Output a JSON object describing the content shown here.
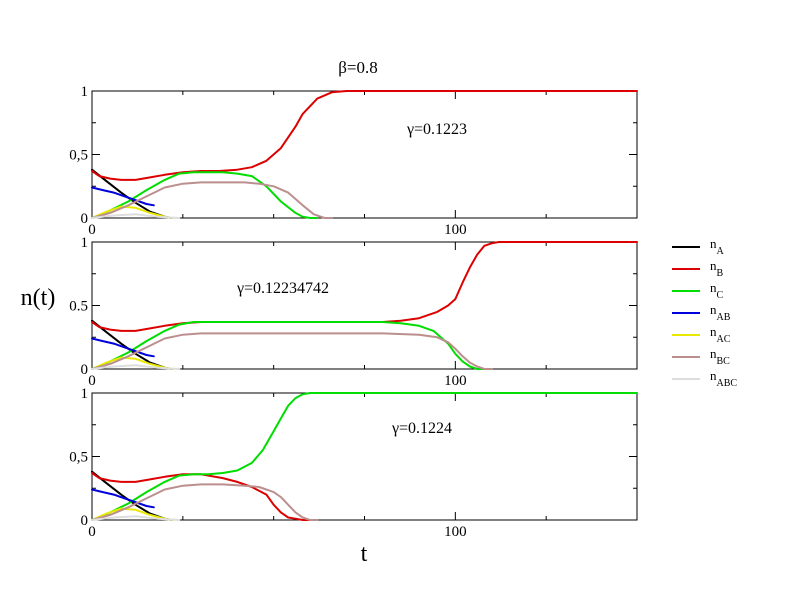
{
  "figure": {
    "title": "β=0.8",
    "ylabel": "n(t)",
    "xlabel": "t"
  },
  "chart_data": [
    {
      "type": "line",
      "panel": "top",
      "annotation": "γ=0.1223",
      "xlim": [
        0,
        150
      ],
      "ylim": [
        0,
        1
      ],
      "yticks": [
        {
          "v": 0,
          "label": "0"
        },
        {
          "v": 0.5,
          "label": "0,5"
        },
        {
          "v": 1,
          "label": "1"
        }
      ],
      "xticks": [
        {
          "v": 0,
          "label": "0"
        },
        {
          "v": 100,
          "label": "100"
        }
      ],
      "series": [
        {
          "key": "nA",
          "color": "#000000",
          "x": [
            0,
            4,
            8,
            12,
            16,
            20,
            22
          ],
          "y": [
            0.38,
            0.29,
            0.2,
            0.12,
            0.05,
            0.01,
            0
          ]
        },
        {
          "key": "nB",
          "color": "#dd0000",
          "x": [
            0,
            2,
            5,
            8,
            12,
            16,
            20,
            25,
            30,
            35,
            40,
            44,
            48,
            52,
            56,
            58,
            62,
            66,
            70,
            100,
            150
          ],
          "y": [
            0.37,
            0.33,
            0.31,
            0.3,
            0.3,
            0.32,
            0.34,
            0.36,
            0.37,
            0.37,
            0.38,
            0.4,
            0.45,
            0.55,
            0.72,
            0.82,
            0.94,
            0.99,
            1,
            1,
            1
          ]
        },
        {
          "key": "nC",
          "color": "#00dd00",
          "x": [
            0,
            5,
            10,
            15,
            20,
            24,
            28,
            32,
            36,
            40,
            44,
            48,
            52,
            56,
            58,
            60,
            62
          ],
          "y": [
            0,
            0.06,
            0.13,
            0.22,
            0.3,
            0.35,
            0.36,
            0.36,
            0.36,
            0.35,
            0.33,
            0.25,
            0.13,
            0.04,
            0.01,
            0,
            0
          ]
        },
        {
          "key": "nAB",
          "color": "#0000dd",
          "x": [
            0,
            3,
            6,
            9,
            12,
            15,
            17
          ],
          "y": [
            0.24,
            0.22,
            0.2,
            0.17,
            0.14,
            0.11,
            0.1
          ]
        },
        {
          "key": "nAC",
          "color": "#e8e800",
          "x": [
            0,
            4,
            8,
            12,
            16,
            20,
            22
          ],
          "y": [
            0,
            0.05,
            0.09,
            0.08,
            0.04,
            0.01,
            0
          ]
        },
        {
          "key": "nBC",
          "color": "#bc8f8f",
          "x": [
            0,
            5,
            10,
            15,
            20,
            25,
            30,
            36,
            42,
            46,
            50,
            54,
            58,
            61,
            64,
            66
          ],
          "y": [
            0,
            0.04,
            0.1,
            0.17,
            0.24,
            0.27,
            0.28,
            0.28,
            0.28,
            0.27,
            0.25,
            0.2,
            0.1,
            0.03,
            0,
            0
          ]
        },
        {
          "key": "nABC",
          "color": "#dddddd",
          "x": [
            0,
            6,
            12,
            18,
            24
          ],
          "y": [
            0,
            0.02,
            0.03,
            0.01,
            0
          ]
        }
      ]
    },
    {
      "type": "line",
      "panel": "middle",
      "annotation": "γ=0.12234742",
      "xlim": [
        0,
        150
      ],
      "ylim": [
        0,
        1
      ],
      "yticks": [
        {
          "v": 0,
          "label": "0"
        },
        {
          "v": 0.5,
          "label": "0.5"
        },
        {
          "v": 1,
          "label": "1"
        }
      ],
      "xticks": [
        {
          "v": 0,
          "label": "0"
        },
        {
          "v": 100,
          "label": "100"
        }
      ],
      "series": [
        {
          "key": "nA",
          "color": "#000000",
          "x": [
            0,
            4,
            8,
            12,
            16,
            20,
            22
          ],
          "y": [
            0.38,
            0.29,
            0.2,
            0.12,
            0.05,
            0.01,
            0
          ]
        },
        {
          "key": "nB",
          "color": "#dd0000",
          "x": [
            0,
            2,
            5,
            8,
            12,
            16,
            20,
            25,
            30,
            40,
            60,
            80,
            85,
            90,
            95,
            98,
            100,
            102,
            104,
            106,
            108,
            110,
            112,
            150
          ],
          "y": [
            0.37,
            0.33,
            0.31,
            0.3,
            0.3,
            0.32,
            0.34,
            0.36,
            0.37,
            0.37,
            0.37,
            0.37,
            0.38,
            0.4,
            0.45,
            0.5,
            0.55,
            0.68,
            0.8,
            0.9,
            0.97,
            0.99,
            1,
            1
          ]
        },
        {
          "key": "nC",
          "color": "#00dd00",
          "x": [
            0,
            5,
            10,
            15,
            20,
            24,
            28,
            40,
            60,
            80,
            85,
            90,
            94,
            98,
            100,
            102,
            104,
            106,
            108
          ],
          "y": [
            0,
            0.06,
            0.13,
            0.22,
            0.3,
            0.35,
            0.37,
            0.37,
            0.37,
            0.37,
            0.36,
            0.34,
            0.3,
            0.2,
            0.12,
            0.06,
            0.02,
            0,
            0
          ]
        },
        {
          "key": "nAB",
          "color": "#0000dd",
          "x": [
            0,
            3,
            6,
            9,
            12,
            15,
            17
          ],
          "y": [
            0.24,
            0.22,
            0.2,
            0.17,
            0.14,
            0.11,
            0.1
          ]
        },
        {
          "key": "nAC",
          "color": "#e8e800",
          "x": [
            0,
            4,
            8,
            12,
            16,
            20,
            22
          ],
          "y": [
            0,
            0.05,
            0.09,
            0.08,
            0.04,
            0.01,
            0
          ]
        },
        {
          "key": "nBC",
          "color": "#bc8f8f",
          "x": [
            0,
            5,
            10,
            15,
            20,
            25,
            30,
            40,
            60,
            80,
            90,
            95,
            98,
            100,
            102,
            104,
            106,
            108,
            110
          ],
          "y": [
            0,
            0.04,
            0.1,
            0.17,
            0.24,
            0.27,
            0.28,
            0.28,
            0.28,
            0.28,
            0.27,
            0.25,
            0.21,
            0.16,
            0.1,
            0.05,
            0.02,
            0,
            0
          ]
        },
        {
          "key": "nABC",
          "color": "#dddddd",
          "x": [
            0,
            6,
            12,
            18,
            24
          ],
          "y": [
            0,
            0.02,
            0.03,
            0.01,
            0
          ]
        }
      ]
    },
    {
      "type": "line",
      "panel": "bottom",
      "annotation": "γ=0.1224",
      "xlim": [
        0,
        150
      ],
      "ylim": [
        0,
        1
      ],
      "yticks": [
        {
          "v": 0,
          "label": "0"
        },
        {
          "v": 0.5,
          "label": "0,5"
        },
        {
          "v": 1,
          "label": "1"
        }
      ],
      "xticks": [
        {
          "v": 0,
          "label": "0"
        },
        {
          "v": 100,
          "label": "100"
        }
      ],
      "series": [
        {
          "key": "nA",
          "color": "#000000",
          "x": [
            0,
            4,
            8,
            12,
            16,
            20,
            22
          ],
          "y": [
            0.38,
            0.29,
            0.2,
            0.12,
            0.05,
            0.01,
            0
          ]
        },
        {
          "key": "nB",
          "color": "#dd0000",
          "x": [
            0,
            2,
            5,
            8,
            12,
            16,
            20,
            25,
            30,
            36,
            40,
            44,
            48,
            50,
            52,
            54,
            56,
            58,
            60
          ],
          "y": [
            0.37,
            0.33,
            0.31,
            0.3,
            0.3,
            0.32,
            0.34,
            0.36,
            0.36,
            0.33,
            0.3,
            0.26,
            0.2,
            0.12,
            0.06,
            0.02,
            0.01,
            0,
            0
          ]
        },
        {
          "key": "nC",
          "color": "#00dd00",
          "x": [
            0,
            5,
            10,
            15,
            20,
            24,
            28,
            32,
            36,
            40,
            44,
            47,
            50,
            52,
            54,
            56,
            58,
            60,
            62,
            150
          ],
          "y": [
            0,
            0.06,
            0.13,
            0.22,
            0.3,
            0.35,
            0.36,
            0.36,
            0.37,
            0.39,
            0.45,
            0.55,
            0.7,
            0.8,
            0.9,
            0.96,
            0.99,
            1,
            1,
            1
          ]
        },
        {
          "key": "nAB",
          "color": "#0000dd",
          "x": [
            0,
            3,
            6,
            9,
            12,
            15,
            17
          ],
          "y": [
            0.24,
            0.22,
            0.2,
            0.17,
            0.14,
            0.11,
            0.1
          ]
        },
        {
          "key": "nAC",
          "color": "#e8e800",
          "x": [
            0,
            4,
            8,
            12,
            16,
            20,
            22
          ],
          "y": [
            0,
            0.05,
            0.09,
            0.08,
            0.04,
            0.01,
            0
          ]
        },
        {
          "key": "nBC",
          "color": "#bc8f8f",
          "x": [
            0,
            5,
            10,
            15,
            20,
            25,
            30,
            36,
            42,
            46,
            50,
            52,
            54,
            56,
            58,
            60,
            62
          ],
          "y": [
            0,
            0.04,
            0.1,
            0.17,
            0.24,
            0.27,
            0.28,
            0.28,
            0.27,
            0.26,
            0.22,
            0.18,
            0.12,
            0.06,
            0.02,
            0,
            0
          ]
        },
        {
          "key": "nABC",
          "color": "#dddddd",
          "x": [
            0,
            6,
            12,
            18,
            24
          ],
          "y": [
            0,
            0.02,
            0.03,
            0.01,
            0
          ]
        }
      ]
    }
  ],
  "legend": {
    "placement": "right",
    "items": [
      {
        "key": "nA",
        "base": "n",
        "sub": "A",
        "color": "#000000"
      },
      {
        "key": "nB",
        "base": "n",
        "sub": "B",
        "color": "#dd0000"
      },
      {
        "key": "nC",
        "base": "n",
        "sub": "C",
        "color": "#00dd00"
      },
      {
        "key": "nAB",
        "base": "n",
        "sub": "AB",
        "color": "#0000dd"
      },
      {
        "key": "nAC",
        "base": "n",
        "sub": "AC",
        "color": "#e8e800"
      },
      {
        "key": "nBC",
        "base": "n",
        "sub": "BC",
        "color": "#bc8f8f"
      },
      {
        "key": "nABC",
        "base": "n",
        "sub": "ABC",
        "color": "#dddddd"
      }
    ]
  }
}
